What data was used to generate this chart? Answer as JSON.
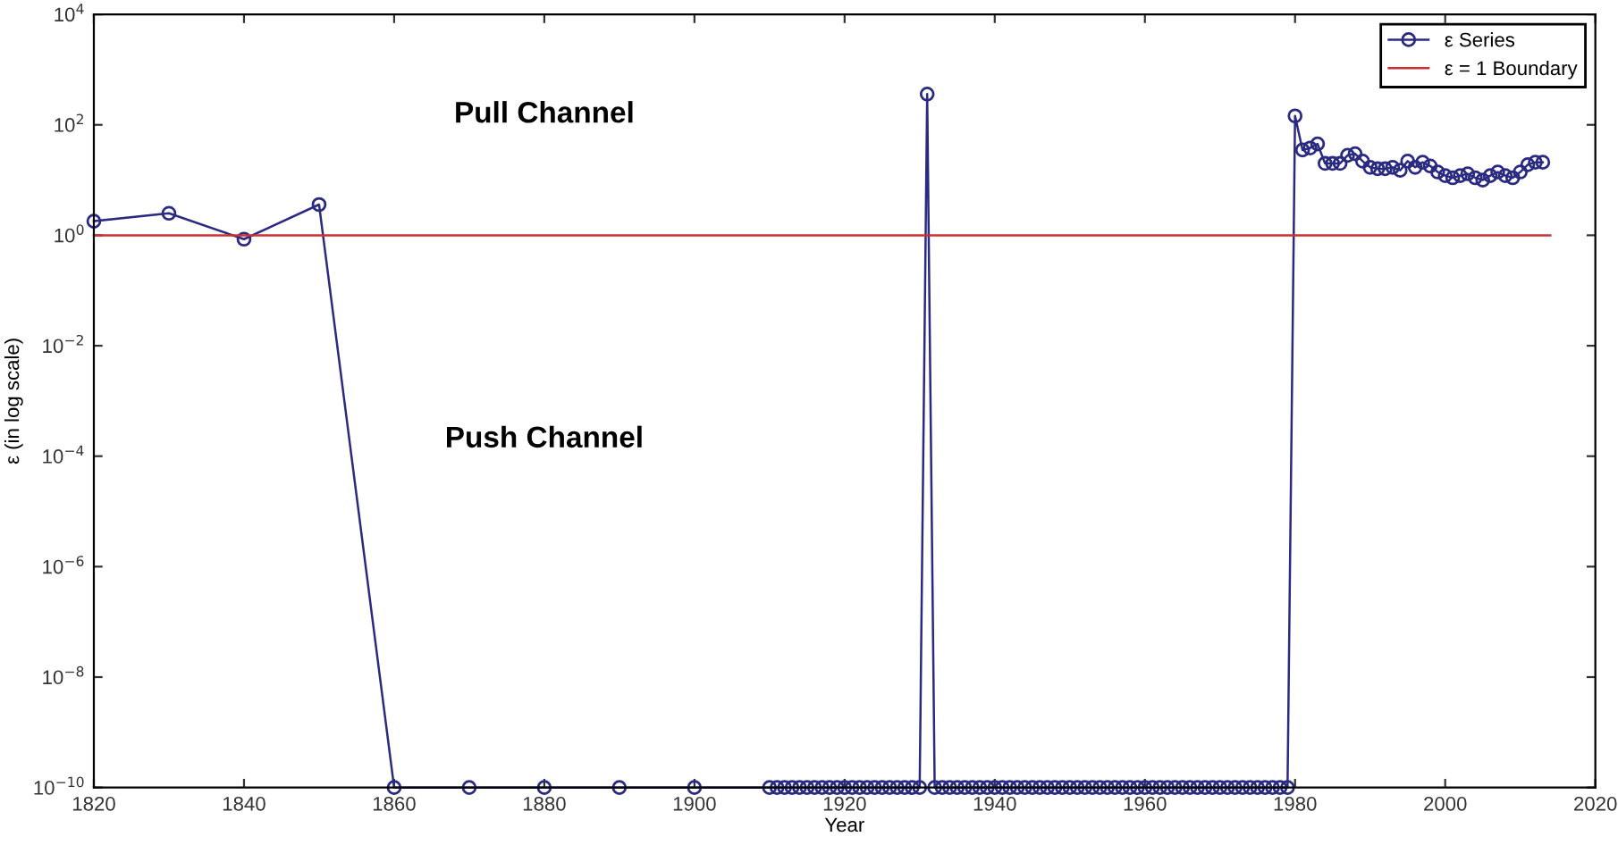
{
  "chart_data": {
    "type": "line",
    "xlabel": "Year",
    "ylabel": "ε (in log scale)",
    "log": "y",
    "grid": false,
    "legend": "top right",
    "xlim": [
      1820,
      2020
    ],
    "xticks": [
      1820,
      1840,
      1860,
      1880,
      1900,
      1920,
      1940,
      1960,
      1980,
      2000,
      2020
    ],
    "ylim": [
      1e-10,
      10000
    ],
    "yticks": [
      {
        "value": 1e-10,
        "label": "10$^{−10}$"
      },
      {
        "value": 1e-08,
        "label": "10$^{−8}$"
      },
      {
        "value": 1e-06,
        "label": "10$^{−6}$"
      },
      {
        "value": 0.0001,
        "label": "10$^{−4}$"
      },
      {
        "value": 0.01,
        "label": "10$^{−2}$"
      },
      {
        "value": 1,
        "label": "10$^{0}$"
      },
      {
        "value": 100,
        "label": "10$^{2}$"
      },
      {
        "value": 10000,
        "label": "10$^{4}$"
      }
    ],
    "annotations": [
      "Pull Channel",
      "Push Channel"
    ],
    "series": [
      {
        "name": "ε Series",
        "color": "#2a2a80",
        "marker": "circle",
        "line_style": "solid",
        "x": [
          1820,
          1830,
          1840,
          1850,
          1860,
          1870,
          1880,
          1890,
          1900,
          1910,
          1911,
          1912,
          1913,
          1914,
          1915,
          1916,
          1917,
          1918,
          1919,
          1920,
          1921,
          1922,
          1923,
          1924,
          1925,
          1926,
          1927,
          1928,
          1929,
          1930,
          1931,
          1932,
          1933,
          1934,
          1935,
          1936,
          1937,
          1938,
          1939,
          1940,
          1941,
          1942,
          1943,
          1944,
          1945,
          1946,
          1947,
          1948,
          1949,
          1950,
          1951,
          1952,
          1953,
          1954,
          1955,
          1956,
          1957,
          1958,
          1959,
          1960,
          1961,
          1962,
          1963,
          1964,
          1965,
          1966,
          1967,
          1968,
          1969,
          1970,
          1971,
          1972,
          1973,
          1974,
          1975,
          1976,
          1977,
          1978,
          1979,
          1980,
          1981,
          1982,
          1983,
          1984,
          1985,
          1986,
          1987,
          1988,
          1989,
          1990,
          1991,
          1992,
          1993,
          1994,
          1995,
          1996,
          1997,
          1998,
          1999,
          2000,
          2001,
          2002,
          2003,
          2004,
          2005,
          2006,
          2007,
          2008,
          2009,
          2010,
          2011,
          2012,
          2013
        ],
        "values": [
          1.8,
          2.5,
          0.85,
          3.6,
          1e-10,
          1e-10,
          1e-10,
          1e-10,
          1e-10,
          1e-10,
          1e-10,
          1e-10,
          1e-10,
          1e-10,
          1e-10,
          1e-10,
          1e-10,
          1e-10,
          1e-10,
          1e-10,
          1e-10,
          1e-10,
          1e-10,
          1e-10,
          1e-10,
          1e-10,
          1e-10,
          1e-10,
          1e-10,
          1e-10,
          360,
          1e-10,
          1e-10,
          1e-10,
          1e-10,
          1e-10,
          1e-10,
          1e-10,
          1e-10,
          1e-10,
          1e-10,
          1e-10,
          1e-10,
          1e-10,
          1e-10,
          1e-10,
          1e-10,
          1e-10,
          1e-10,
          1e-10,
          1e-10,
          1e-10,
          1e-10,
          1e-10,
          1e-10,
          1e-10,
          1e-10,
          1e-10,
          1e-10,
          1e-10,
          1e-10,
          1e-10,
          1e-10,
          1e-10,
          1e-10,
          1e-10,
          1e-10,
          1e-10,
          1e-10,
          1e-10,
          1e-10,
          1e-10,
          1e-10,
          1e-10,
          1e-10,
          1e-10,
          1e-10,
          1e-10,
          1e-10,
          145,
          35,
          38,
          45,
          20,
          20,
          20,
          28,
          30,
          22,
          17,
          16,
          16,
          17,
          15,
          22,
          17,
          21,
          18,
          14,
          12,
          11,
          12,
          13,
          11,
          10,
          12,
          14,
          12,
          11,
          14,
          19,
          21,
          21
        ]
      },
      {
        "name": "ε = 1 Boundary",
        "color": "#c83232",
        "marker": "none",
        "line_style": "solid",
        "x": [
          1820,
          2014
        ],
        "values": [
          1,
          1
        ]
      }
    ]
  }
}
